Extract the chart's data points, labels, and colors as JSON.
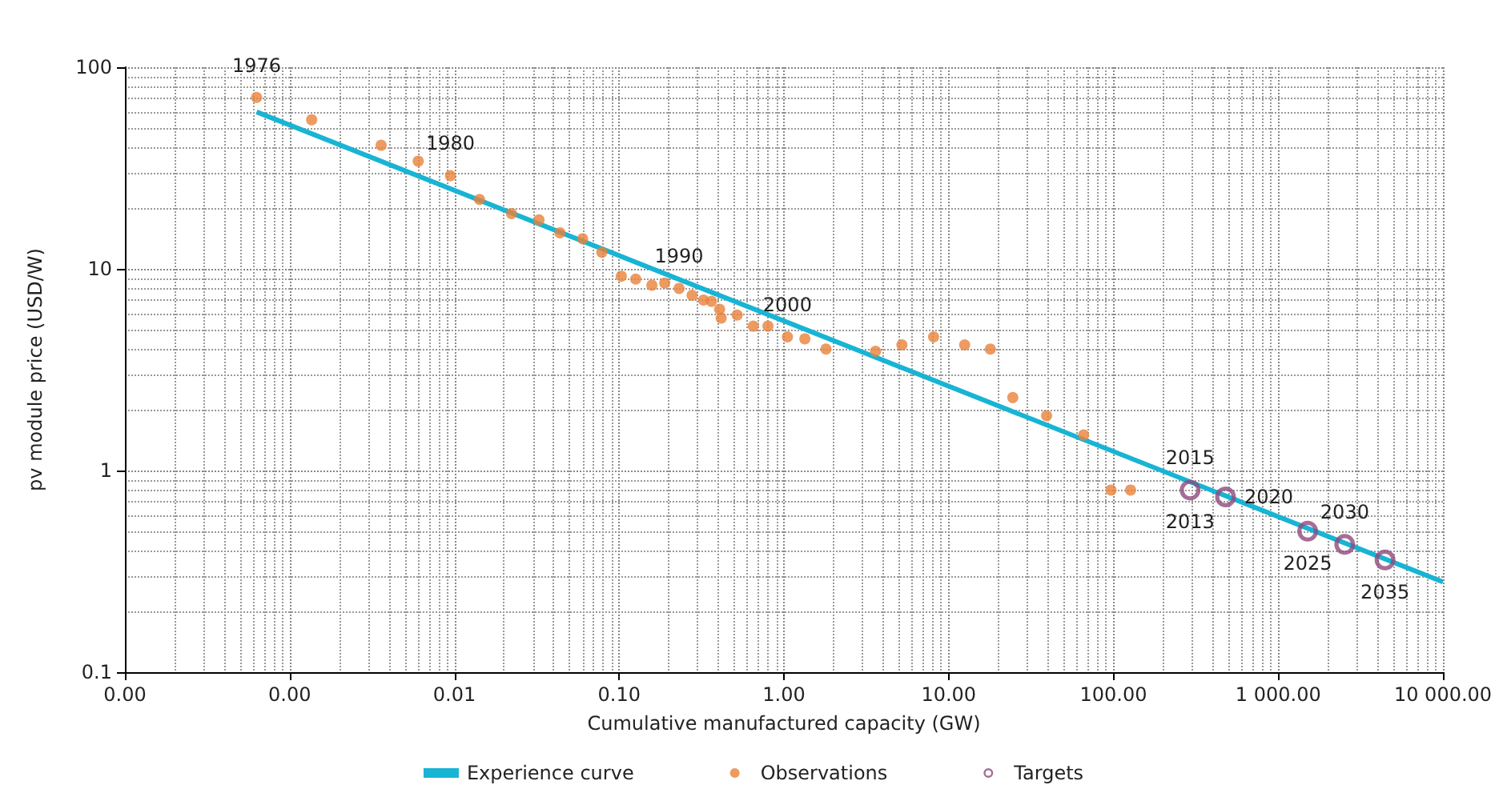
{
  "chart_data": {
    "type": "scatter",
    "xlabel": "Cumulative manufactured capacity (GW)",
    "ylabel": "pv module price (USD/W)",
    "log": "xy",
    "grid": true,
    "legend": "bottom",
    "xlim": [
      0.0001,
      10000
    ],
    "ylim": [
      0.1,
      100
    ],
    "xticks": [
      {
        "value": 0.0001,
        "label": "0.00"
      },
      {
        "value": 0.001,
        "label": "0.00"
      },
      {
        "value": 0.01,
        "label": "0.01"
      },
      {
        "value": 0.1,
        "label": "0.10"
      },
      {
        "value": 1,
        "label": "1.00"
      },
      {
        "value": 10,
        "label": "10.00"
      },
      {
        "value": 100,
        "label": "100.00"
      },
      {
        "value": 1000,
        "label": "1 000.00"
      },
      {
        "value": 10000,
        "label": "10 000.00"
      }
    ],
    "yticks": [
      0.1,
      1,
      10,
      100
    ],
    "series": [
      {
        "name": "Experience curve",
        "type": "line",
        "color": "#18b4d4",
        "marker": "none",
        "line_style": "solid",
        "x": [
          0.00063,
          10000
        ],
        "values": [
          60,
          0.28
        ]
      },
      {
        "name": "Observations",
        "color": "#e8823a",
        "marker": "circle",
        "x": [
          0.00063,
          0.00136,
          0.00359,
          0.00603,
          0.00946,
          0.0142,
          0.0222,
          0.0326,
          0.0437,
          0.06,
          0.0785,
          0.103,
          0.126,
          0.158,
          0.189,
          0.231,
          0.277,
          0.325,
          0.363,
          0.407,
          0.416,
          0.52,
          0.652,
          0.8,
          1.05,
          1.34,
          1.8,
          3.6,
          5.2,
          8.1,
          12.5,
          17.9,
          24.5,
          39.3,
          65.9,
          96.7,
          127
        ],
        "values": [
          70.8,
          54.9,
          41,
          34.2,
          29,
          22.1,
          18.8,
          17.5,
          15.1,
          14.1,
          12.1,
          9.2,
          8.9,
          8.3,
          8.5,
          8,
          7.4,
          7,
          6.9,
          6.3,
          5.7,
          5.9,
          5.2,
          5.2,
          4.6,
          4.5,
          4,
          3.9,
          4.2,
          4.6,
          4.2,
          4,
          2.3,
          1.87,
          1.5,
          0.8,
          0.8
        ]
      },
      {
        "name": "Targets",
        "color": "#8e4a7e",
        "x": [
          292,
          479,
          1510,
          2535,
          4450
        ],
        "values": [
          0.8,
          0.74,
          0.5,
          0.43,
          0.36
        ]
      }
    ],
    "annotations": [
      {
        "text": "1976",
        "x": 0.00063,
        "y": 70.8
      },
      {
        "text": "1980",
        "x": 0.00946,
        "y": 29
      },
      {
        "text": "1990",
        "x": 0.231,
        "y": 8
      },
      {
        "text": "2000",
        "x": 1.05,
        "y": 4.6
      },
      {
        "text": "2015",
        "x": 292,
        "y": 0.8
      },
      {
        "text": "2013",
        "x": 292,
        "y": 0.8
      },
      {
        "text": "2020",
        "x": 479,
        "y": 0.74
      },
      {
        "text": "2025",
        "x": 1510,
        "y": 0.5
      },
      {
        "text": "2030",
        "x": 2535,
        "y": 0.43
      },
      {
        "text": "2035",
        "x": 4450,
        "y": 0.36
      }
    ]
  }
}
